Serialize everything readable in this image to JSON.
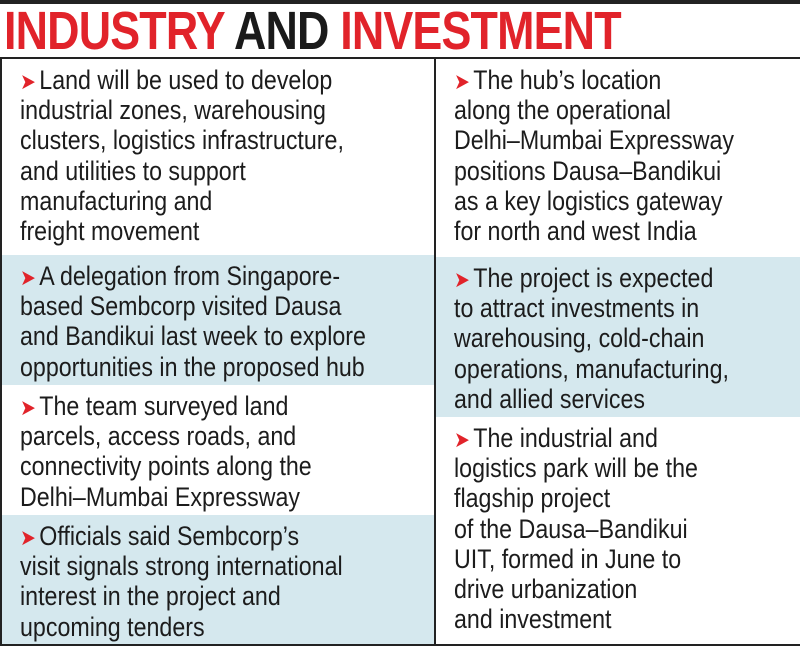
{
  "title": {
    "part1": "INDUSTRY",
    "part2": "AND",
    "part3": "INVESTMENT"
  },
  "colors": {
    "accent_red": "#e1232a",
    "box_blue": "#d5e8ee"
  },
  "bullet_icon": "red-arrowhead",
  "left": [
    {
      "lines": [
        "Land will be used to develop",
        "industrial zones, warehousing",
        "clusters, logistics infrastructure,",
        "and utilities to support",
        "manufacturing and",
        "freight movement"
      ]
    },
    {
      "lines": [
        "A delegation from Singapore-",
        "based Sembcorp visited Dausa",
        "and Bandikui last week to explore",
        "opportunities in the proposed hub"
      ]
    },
    {
      "lines": [
        "The team surveyed land",
        "parcels, access roads, and",
        "connectivity points along the",
        "Delhi–Mumbai Expressway"
      ]
    },
    {
      "lines": [
        "Officials said Sembcorp’s",
        "visit signals strong international",
        "interest in the project and",
        "upcoming tenders"
      ]
    }
  ],
  "right": [
    {
      "lines": [
        "The hub’s location",
        "along the operational",
        "Delhi–Mumbai Expressway",
        "positions Dausa–Bandikui",
        "as a key logistics gateway",
        "for north and west India"
      ]
    },
    {
      "lines": [
        "The project is expected",
        "to attract investments in",
        "warehousing, cold-chain",
        "operations, manufacturing,",
        "and allied services"
      ]
    },
    {
      "lines": [
        "The industrial and",
        "logistics park will be the",
        "flagship project",
        "of the Dausa–Bandikui",
        "UIT, formed in June to",
        "drive urbanization",
        "and investment"
      ]
    }
  ]
}
